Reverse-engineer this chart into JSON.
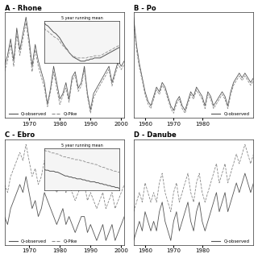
{
  "panel_A_title": "A - Rhone",
  "panel_B_title": "B - Po",
  "panel_C_title": "C - Ebro",
  "panel_D_title": "D - Danube",
  "panel_A_years": [
    1962,
    1963,
    1964,
    1965,
    1966,
    1967,
    1968,
    1969,
    1970,
    1971,
    1972,
    1973,
    1974,
    1975,
    1976,
    1977,
    1978,
    1979,
    1980,
    1981,
    1982,
    1983,
    1984,
    1985,
    1986,
    1987,
    1988,
    1989,
    1990,
    1991,
    1992,
    1993,
    1994,
    1995,
    1996,
    1997,
    1998,
    1999,
    2000,
    2001
  ],
  "panel_A_obs": [
    0.85,
    0.95,
    1.1,
    0.9,
    1.2,
    1.0,
    1.15,
    1.3,
    1.1,
    0.85,
    1.05,
    0.9,
    0.8,
    0.7,
    0.5,
    0.65,
    0.85,
    0.7,
    0.55,
    0.6,
    0.7,
    0.55,
    0.75,
    0.8,
    0.65,
    0.7,
    0.85,
    0.6,
    0.45,
    0.6,
    0.65,
    0.7,
    0.75,
    0.8,
    0.85,
    0.7,
    0.8,
    0.9,
    0.85,
    0.9
  ],
  "panel_A_pike": [
    0.8,
    0.9,
    1.05,
    0.85,
    1.15,
    0.95,
    1.1,
    1.25,
    1.05,
    0.8,
    1.0,
    0.85,
    0.75,
    0.65,
    0.48,
    0.62,
    0.8,
    0.65,
    0.5,
    0.58,
    0.65,
    0.52,
    0.72,
    0.77,
    0.62,
    0.67,
    0.82,
    0.57,
    0.42,
    0.56,
    0.62,
    0.67,
    0.72,
    0.77,
    0.82,
    0.67,
    0.77,
    0.87,
    0.82,
    0.87
  ],
  "panel_A_obs_run": [
    1.0,
    0.98,
    0.97,
    0.95,
    0.93,
    0.91,
    0.9,
    0.88,
    0.86,
    0.83,
    0.8,
    0.77,
    0.75,
    0.72,
    0.7,
    0.68,
    0.67,
    0.66,
    0.65,
    0.64,
    0.64,
    0.64,
    0.65,
    0.65,
    0.66,
    0.66,
    0.67,
    0.67,
    0.67,
    0.67,
    0.68,
    0.69,
    0.7,
    0.71,
    0.72,
    0.73,
    0.74,
    0.75,
    0.76,
    0.77
  ],
  "panel_A_pike_run": [
    0.95,
    0.93,
    0.92,
    0.9,
    0.89,
    0.87,
    0.86,
    0.85,
    0.83,
    0.8,
    0.78,
    0.76,
    0.74,
    0.72,
    0.7,
    0.69,
    0.68,
    0.67,
    0.67,
    0.67,
    0.67,
    0.67,
    0.67,
    0.68,
    0.68,
    0.68,
    0.69,
    0.69,
    0.69,
    0.69,
    0.7,
    0.71,
    0.72,
    0.73,
    0.74,
    0.75,
    0.76,
    0.77,
    0.78,
    0.79
  ],
  "panel_A_xlim": [
    1962,
    2001
  ],
  "panel_A_xticks": [
    1970,
    1980,
    1990,
    2000
  ],
  "panel_B_years": [
    1956,
    1957,
    1958,
    1959,
    1960,
    1961,
    1962,
    1963,
    1964,
    1965,
    1966,
    1967,
    1968,
    1969,
    1970,
    1971,
    1972,
    1973,
    1974,
    1975,
    1976,
    1977,
    1978,
    1979,
    1980,
    1981,
    1982,
    1983,
    1984,
    1985,
    1986,
    1987,
    1988,
    1989,
    1990,
    1991,
    1992,
    1993,
    1994,
    1995,
    1996,
    1997,
    1998
  ],
  "panel_B_obs": [
    1.5,
    1.2,
    1.0,
    0.85,
    0.7,
    0.6,
    0.55,
    0.65,
    0.75,
    0.7,
    0.8,
    0.75,
    0.65,
    0.55,
    0.5,
    0.6,
    0.65,
    0.55,
    0.5,
    0.6,
    0.7,
    0.65,
    0.75,
    0.7,
    0.65,
    0.55,
    0.7,
    0.65,
    0.55,
    0.6,
    0.65,
    0.7,
    0.65,
    0.55,
    0.7,
    0.8,
    0.85,
    0.9,
    0.85,
    0.9,
    0.85,
    0.8,
    0.85
  ],
  "panel_B_pike": [
    1.45,
    1.15,
    0.96,
    0.82,
    0.67,
    0.57,
    0.52,
    0.62,
    0.72,
    0.67,
    0.77,
    0.72,
    0.62,
    0.52,
    0.47,
    0.57,
    0.62,
    0.52,
    0.47,
    0.57,
    0.67,
    0.62,
    0.72,
    0.67,
    0.62,
    0.52,
    0.67,
    0.62,
    0.52,
    0.57,
    0.62,
    0.67,
    0.62,
    0.52,
    0.67,
    0.77,
    0.82,
    0.87,
    0.82,
    0.87,
    0.82,
    0.77,
    0.82
  ],
  "panel_B_xlim": [
    1956,
    1998
  ],
  "panel_B_xticks": [
    1960,
    1970,
    1980
  ],
  "panel_C_years": [
    1962,
    1963,
    1964,
    1965,
    1966,
    1967,
    1968,
    1969,
    1970,
    1971,
    1972,
    1973,
    1974,
    1975,
    1976,
    1977,
    1978,
    1979,
    1980,
    1981,
    1982,
    1983,
    1984,
    1985,
    1986,
    1987,
    1988,
    1989,
    1990,
    1991,
    1992,
    1993,
    1994,
    1995,
    1996,
    1997,
    1998,
    1999,
    2000,
    2001
  ],
  "panel_C_obs": [
    0.7,
    0.65,
    0.75,
    0.8,
    0.85,
    0.9,
    0.85,
    0.95,
    0.85,
    0.75,
    0.8,
    0.7,
    0.75,
    0.85,
    0.8,
    0.75,
    0.7,
    0.65,
    0.7,
    0.75,
    0.65,
    0.7,
    0.65,
    0.6,
    0.65,
    0.7,
    0.7,
    0.6,
    0.65,
    0.6,
    0.55,
    0.6,
    0.65,
    0.55,
    0.6,
    0.65,
    0.55,
    0.6,
    0.65,
    0.7
  ],
  "panel_C_pike": [
    0.9,
    0.85,
    0.95,
    1.0,
    1.05,
    1.1,
    1.05,
    1.15,
    1.05,
    0.95,
    1.0,
    0.9,
    0.95,
    1.05,
    1.0,
    0.95,
    0.9,
    0.85,
    0.9,
    0.95,
    0.85,
    0.9,
    0.85,
    0.8,
    0.85,
    0.9,
    0.9,
    0.8,
    0.85,
    0.8,
    0.75,
    0.8,
    0.85,
    0.75,
    0.8,
    0.85,
    0.75,
    0.8,
    0.85,
    0.9
  ],
  "panel_C_obs_run": [
    0.8,
    0.79,
    0.79,
    0.78,
    0.78,
    0.78,
    0.77,
    0.77,
    0.76,
    0.75,
    0.74,
    0.73,
    0.73,
    0.72,
    0.72,
    0.71,
    0.71,
    0.7,
    0.7,
    0.7,
    0.69,
    0.69,
    0.68,
    0.68,
    0.67,
    0.67,
    0.67,
    0.66,
    0.66,
    0.65,
    0.65,
    0.64,
    0.64,
    0.63,
    0.63,
    0.62,
    0.62,
    0.61,
    0.61,
    0.6
  ],
  "panel_C_pike_run": [
    1.0,
    0.99,
    0.99,
    0.98,
    0.97,
    0.97,
    0.96,
    0.96,
    0.95,
    0.94,
    0.93,
    0.93,
    0.92,
    0.92,
    0.91,
    0.91,
    0.9,
    0.9,
    0.9,
    0.89,
    0.89,
    0.88,
    0.87,
    0.87,
    0.86,
    0.86,
    0.85,
    0.85,
    0.84,
    0.83,
    0.82,
    0.82,
    0.81,
    0.8,
    0.8,
    0.79,
    0.78,
    0.78,
    0.77,
    0.77
  ],
  "panel_C_xlim": [
    1962,
    2001
  ],
  "panel_C_xticks": [
    1970,
    1980,
    1990,
    2000
  ],
  "panel_D_years": [
    1956,
    1957,
    1958,
    1959,
    1960,
    1961,
    1962,
    1963,
    1964,
    1965,
    1966,
    1967,
    1968,
    1969,
    1970,
    1971,
    1972,
    1973,
    1974,
    1975,
    1976,
    1977,
    1978,
    1979,
    1980,
    1981,
    1982,
    1983,
    1984,
    1985,
    1986,
    1987,
    1988,
    1989,
    1990,
    1991,
    1992,
    1993,
    1994,
    1995,
    1996,
    1997,
    1998
  ],
  "panel_D_obs": [
    0.6,
    0.65,
    0.7,
    0.65,
    0.75,
    0.7,
    0.65,
    0.7,
    0.65,
    0.75,
    0.8,
    0.7,
    0.65,
    0.6,
    0.7,
    0.75,
    0.65,
    0.7,
    0.75,
    0.8,
    0.7,
    0.65,
    0.75,
    0.8,
    0.7,
    0.65,
    0.7,
    0.75,
    0.8,
    0.85,
    0.75,
    0.8,
    0.85,
    0.75,
    0.8,
    0.85,
    0.9,
    0.85,
    0.9,
    0.95,
    0.9,
    0.85,
    0.9
  ],
  "panel_D_pike": [
    0.75,
    0.8,
    0.85,
    0.8,
    0.9,
    0.85,
    0.8,
    0.85,
    0.8,
    0.9,
    0.95,
    0.85,
    0.8,
    0.75,
    0.85,
    0.9,
    0.8,
    0.85,
    0.9,
    0.95,
    0.85,
    0.8,
    0.9,
    0.95,
    0.85,
    0.8,
    0.85,
    0.9,
    0.95,
    1.0,
    0.9,
    0.95,
    1.0,
    0.9,
    0.95,
    1.0,
    1.05,
    1.0,
    1.05,
    1.1,
    1.05,
    1.0,
    1.05
  ],
  "panel_D_xlim": [
    1956,
    1998
  ],
  "panel_D_xticks": [
    1960,
    1970,
    1980
  ],
  "line_color_obs": "#555555",
  "line_color_pike": "#888888",
  "line_color_obs_run": "#555555",
  "line_color_pike_run": "#999999",
  "bg_color": "#ffffff",
  "inset_bg": "#f0f0f0"
}
